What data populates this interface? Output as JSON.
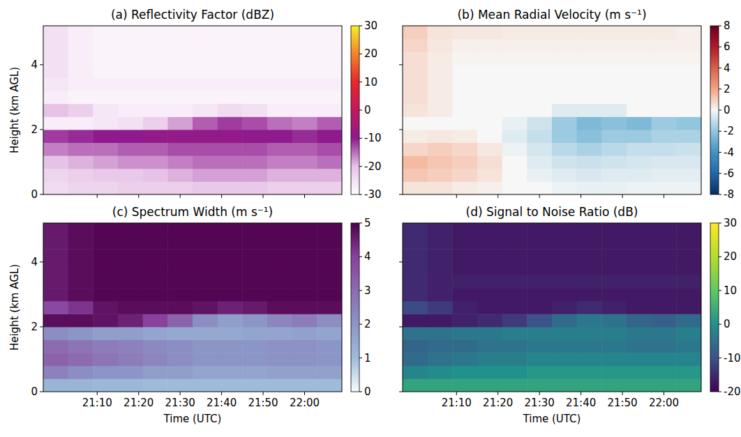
{
  "chart_data": [
    {
      "type": "heatmap",
      "title": "(a) Reflectivity Factor (dBZ)",
      "ylabel": "Height (km AGL)",
      "tick_labels": "y",
      "xlim": [
        1257,
        1329
      ],
      "ylim": [
        0,
        5.2
      ],
      "xticks": [
        {
          "value": 1270,
          "label": "21:10"
        },
        {
          "value": 1280,
          "label": "21:20"
        },
        {
          "value": 1290,
          "label": "21:30"
        },
        {
          "value": 1300,
          "label": "21:40"
        },
        {
          "value": 1310,
          "label": "21:50"
        },
        {
          "value": 1320,
          "label": "22:00"
        }
      ],
      "yticks": [
        0,
        2,
        4
      ],
      "x_bins": [
        1257,
        1263,
        1269,
        1275,
        1281,
        1287,
        1293,
        1299,
        1305,
        1311,
        1317,
        1323,
        1329
      ],
      "y_bins": [
        0,
        0.4,
        0.8,
        1.2,
        1.6,
        2.0,
        2.4,
        2.8,
        3.2,
        3.6,
        4.0,
        4.4,
        4.8,
        5.2
      ],
      "cells": [
        [
          -24,
          -23,
          -23,
          -22,
          -22,
          -22,
          -21,
          -21,
          -21,
          -22,
          -22,
          -22
        ],
        [
          -23,
          -22,
          -21,
          -21,
          -20,
          -19,
          -18,
          -18,
          -18,
          -19,
          -19,
          -19
        ],
        [
          -20,
          -19,
          -18,
          -17,
          -17,
          -16,
          -15,
          -15,
          -15,
          -16,
          -16,
          -15
        ],
        [
          -16,
          -15,
          -15,
          -14,
          -14,
          -13,
          -13,
          -13,
          -13,
          -14,
          -14,
          -13
        ],
        [
          -12,
          -11,
          -10,
          -10,
          -9,
          -9,
          -9,
          -9,
          -10,
          -10,
          -11,
          -10
        ],
        [
          -27,
          -27,
          -26,
          -25,
          -22,
          -18,
          -14,
          -12,
          -13,
          -15,
          -16,
          -14
        ],
        [
          -20,
          -22,
          -26,
          -27,
          -27,
          -27,
          -26,
          -24,
          -25,
          -27,
          -27,
          -27
        ],
        [
          -27,
          -28,
          -28,
          -28,
          -28,
          -28,
          -28,
          -28,
          -28,
          -28,
          -28,
          -28
        ],
        [
          -26,
          -27,
          -27,
          -27,
          -27,
          -27,
          -27,
          -27,
          -27,
          -27,
          -27,
          -27
        ],
        [
          -25,
          -27,
          -28,
          -28,
          -28,
          -28,
          -28,
          -28,
          -28,
          -28,
          -28,
          -28
        ],
        [
          -25,
          -27,
          -28,
          -28,
          -28,
          -28,
          -28,
          -28,
          -28,
          -28,
          -28,
          -28
        ],
        [
          -25,
          -27,
          -28,
          -28,
          -28,
          -28,
          -28,
          -28,
          -28,
          -28,
          -28,
          -28
        ],
        [
          -25,
          -27,
          -28,
          -28,
          -28,
          -28,
          -28,
          -28,
          -28,
          -28,
          -28,
          -28
        ]
      ],
      "colorbar_range": [
        -30,
        30
      ],
      "colorbar_ticks": [
        -30,
        -20,
        -10,
        0,
        10,
        20,
        30
      ],
      "colors": [
        "#ffffff",
        "#e6c3e6",
        "#8e1a8e",
        "#c2185b",
        "#e8262a",
        "#f2842a",
        "#f9ee25"
      ]
    },
    {
      "type": "heatmap",
      "title": "(b) Mean Radial Velocity (m s⁻¹)",
      "tick_labels": false,
      "xlim": [
        1257,
        1329
      ],
      "ylim": [
        0,
        5.2
      ],
      "xticks": [
        {
          "value": 1270,
          "label": "21:10"
        },
        {
          "value": 1280,
          "label": "21:20"
        },
        {
          "value": 1290,
          "label": "21:30"
        },
        {
          "value": 1300,
          "label": "21:40"
        },
        {
          "value": 1310,
          "label": "21:50"
        },
        {
          "value": 1320,
          "label": "22:00"
        }
      ],
      "yticks": [
        0,
        2,
        4
      ],
      "x_bins": [
        1257,
        1263,
        1269,
        1275,
        1281,
        1287,
        1293,
        1299,
        1305,
        1311,
        1317,
        1323,
        1329
      ],
      "y_bins": [
        0,
        0.4,
        0.8,
        1.2,
        1.6,
        2.0,
        2.4,
        2.8,
        3.2,
        3.6,
        4.0,
        4.4,
        4.8,
        5.2
      ],
      "cells": [
        [
          0.5,
          0.5,
          0.3,
          0.2,
          0,
          0,
          -0.2,
          -0.3,
          -0.3,
          -0.2,
          -0.2,
          -0.2
        ],
        [
          1.2,
          1.0,
          0.8,
          0.5,
          0,
          -0.3,
          -0.5,
          -0.6,
          -0.5,
          -0.5,
          -0.4,
          -0.4
        ],
        [
          1.5,
          1.2,
          1.0,
          0.6,
          0,
          -0.5,
          -0.8,
          -0.9,
          -0.8,
          -0.7,
          -0.6,
          -0.6
        ],
        [
          0.8,
          1.0,
          0.8,
          0.4,
          -0.2,
          -0.7,
          -1.2,
          -1.5,
          -1.2,
          -1.0,
          -1.0,
          -0.9
        ],
        [
          0.3,
          0.4,
          0.3,
          0,
          -0.5,
          -1.0,
          -1.8,
          -2.2,
          -1.8,
          -1.8,
          -1.5,
          -1.5
        ],
        [
          0,
          0,
          0,
          0,
          -0.3,
          -0.8,
          -1.8,
          -2.5,
          -2.2,
          -2.5,
          -1.8,
          -2.0
        ],
        [
          0.5,
          0.3,
          0,
          0,
          0,
          0,
          -0.5,
          -0.5,
          -0.5,
          0,
          0,
          0
        ],
        [
          0.6,
          0.3,
          0,
          0,
          0,
          0,
          0,
          0,
          0,
          0,
          0,
          0
        ],
        [
          0.6,
          0.3,
          0,
          0,
          0,
          0,
          0,
          0,
          0,
          0,
          0,
          0
        ],
        [
          0.6,
          0.3,
          0,
          0,
          0,
          0,
          0,
          0,
          0,
          0,
          0,
          0
        ],
        [
          0.6,
          0.3,
          0.1,
          0.1,
          0.1,
          0.1,
          0.1,
          0.1,
          0.1,
          0.1,
          0.1,
          0.1
        ],
        [
          0.8,
          0.4,
          0.2,
          0.2,
          0.2,
          0.2,
          0.2,
          0.2,
          0.2,
          0.2,
          0.2,
          0.2
        ],
        [
          1.0,
          0.5,
          0.4,
          0.4,
          0.3,
          0.3,
          0.3,
          0.3,
          0.3,
          0.3,
          0.3,
          0.2
        ]
      ],
      "colorbar_range": [
        -8,
        8
      ],
      "colorbar_ticks": [
        -8,
        -6,
        -4,
        -2,
        0,
        2,
        4,
        6,
        8
      ],
      "colors": [
        "#053061",
        "#2166ac",
        "#4393c3",
        "#92c5de",
        "#f7f7f7",
        "#f4a582",
        "#d6604d",
        "#b2182b",
        "#67001f"
      ]
    },
    {
      "type": "heatmap",
      "title": "(c) Spectrum Width (m s⁻¹)",
      "ylabel": "Height (km AGL)",
      "xlabel": "Time (UTC)",
      "tick_labels": true,
      "xlim": [
        1257,
        1329
      ],
      "ylim": [
        0,
        5.2
      ],
      "xticks": [
        {
          "value": 1270,
          "label": "21:10"
        },
        {
          "value": 1280,
          "label": "21:20"
        },
        {
          "value": 1290,
          "label": "21:30"
        },
        {
          "value": 1300,
          "label": "21:40"
        },
        {
          "value": 1310,
          "label": "21:50"
        },
        {
          "value": 1320,
          "label": "22:00"
        }
      ],
      "yticks": [
        0,
        2,
        4
      ],
      "x_bins": [
        1257,
        1263,
        1269,
        1275,
        1281,
        1287,
        1293,
        1299,
        1305,
        1311,
        1317,
        1323,
        1329
      ],
      "y_bins": [
        0,
        0.4,
        0.8,
        1.2,
        1.6,
        2.0,
        2.4,
        2.8,
        3.2,
        3.6,
        4.0,
        4.4,
        4.8,
        5.2
      ],
      "cells": [
        [
          1.2,
          1.2,
          1.1,
          1.1,
          1.0,
          1.0,
          1.0,
          1.0,
          1.0,
          1.0,
          1.0,
          1.0
        ],
        [
          2.5,
          2.2,
          2.0,
          2.0,
          1.8,
          1.8,
          1.6,
          1.6,
          1.6,
          1.7,
          1.7,
          1.7
        ],
        [
          3.2,
          3.0,
          2.8,
          2.6,
          2.4,
          2.2,
          2.0,
          2.0,
          2.0,
          2.1,
          2.1,
          2.0
        ],
        [
          3.0,
          2.8,
          2.6,
          2.5,
          2.3,
          2.2,
          2.0,
          2.0,
          2.0,
          2.1,
          2.1,
          2.0
        ],
        [
          2.2,
          2.0,
          1.8,
          1.8,
          1.6,
          1.5,
          1.5,
          1.5,
          1.6,
          1.6,
          1.7,
          1.6
        ],
        [
          4.8,
          4.8,
          4.7,
          4.5,
          4.0,
          3.2,
          2.2,
          1.8,
          2.0,
          2.4,
          2.6,
          2.2
        ],
        [
          3.8,
          4.2,
          4.7,
          4.8,
          4.8,
          4.8,
          4.7,
          4.5,
          4.6,
          4.8,
          4.8,
          4.8
        ],
        [
          4.6,
          4.8,
          4.9,
          4.9,
          4.9,
          4.9,
          4.9,
          4.9,
          4.9,
          4.9,
          4.9,
          4.9
        ],
        [
          4.6,
          4.8,
          4.9,
          4.9,
          4.9,
          4.9,
          4.9,
          4.9,
          4.9,
          4.9,
          4.9,
          4.9
        ],
        [
          4.6,
          4.8,
          4.9,
          4.9,
          4.9,
          4.9,
          4.9,
          4.9,
          4.9,
          4.9,
          4.9,
          4.9
        ],
        [
          4.6,
          4.8,
          4.9,
          4.9,
          4.9,
          4.9,
          4.9,
          4.9,
          4.9,
          4.9,
          4.9,
          4.9
        ],
        [
          4.6,
          4.8,
          4.9,
          4.9,
          4.9,
          4.9,
          4.9,
          4.9,
          4.9,
          4.9,
          4.9,
          4.9
        ],
        [
          4.6,
          4.8,
          4.9,
          4.9,
          4.9,
          4.9,
          4.9,
          4.9,
          4.9,
          4.9,
          4.9,
          4.9
        ]
      ],
      "colorbar_range": [
        0,
        5
      ],
      "colorbar_ticks": [
        0,
        1,
        2,
        3,
        4,
        5
      ],
      "colors": [
        "#f7fcfd",
        "#9ebcda",
        "#8c96c6",
        "#8c6bb1",
        "#88419d",
        "#4d004b"
      ]
    },
    {
      "type": "heatmap",
      "title": "(d) Signal to Noise Ratio (dB)",
      "xlabel": "Time (UTC)",
      "tick_labels": "x",
      "xlim": [
        1257,
        1329
      ],
      "ylim": [
        0,
        5.2
      ],
      "xticks": [
        {
          "value": 1270,
          "label": "21:10"
        },
        {
          "value": 1280,
          "label": "21:20"
        },
        {
          "value": 1290,
          "label": "21:30"
        },
        {
          "value": 1300,
          "label": "21:40"
        },
        {
          "value": 1310,
          "label": "21:50"
        },
        {
          "value": 1320,
          "label": "22:00"
        }
      ],
      "yticks": [
        0,
        2,
        4
      ],
      "x_bins": [
        1257,
        1263,
        1269,
        1275,
        1281,
        1287,
        1293,
        1299,
        1305,
        1311,
        1317,
        1323,
        1329
      ],
      "y_bins": [
        0,
        0.4,
        0.8,
        1.2,
        1.6,
        2.0,
        2.4,
        2.8,
        3.2,
        3.6,
        4.0,
        4.4,
        4.8,
        5.2
      ],
      "cells": [
        [
          3,
          3,
          3,
          3,
          3,
          3,
          3,
          3,
          3,
          3,
          3,
          3
        ],
        [
          -2,
          -1,
          0,
          0,
          0,
          1,
          1,
          1,
          1,
          1,
          1,
          1
        ],
        [
          -6,
          -5,
          -4,
          -3,
          -3,
          -2,
          -2,
          -2,
          -2,
          -2,
          -2,
          -2
        ],
        [
          -7,
          -6,
          -6,
          -5,
          -5,
          -4,
          -4,
          -4,
          -4,
          -5,
          -5,
          -4
        ],
        [
          -5,
          -5,
          -4,
          -4,
          -3,
          -3,
          -3,
          -3,
          -3,
          -4,
          -4,
          -3
        ],
        [
          -17,
          -17,
          -16,
          -15,
          -13,
          -10,
          -6,
          -4,
          -5,
          -7,
          -8,
          -6
        ],
        [
          -11,
          -13,
          -16,
          -17,
          -17,
          -17,
          -16,
          -15,
          -16,
          -17,
          -17,
          -17
        ],
        [
          -15,
          -16,
          -17,
          -17,
          -17,
          -17,
          -17,
          -17,
          -17,
          -17,
          -17,
          -17
        ],
        [
          -15,
          -16,
          -16,
          -16,
          -16,
          -16,
          -16,
          -16,
          -16,
          -16,
          -16,
          -16
        ],
        [
          -15,
          -16,
          -17,
          -17,
          -17,
          -17,
          -17,
          -17,
          -17,
          -17,
          -17,
          -17
        ],
        [
          -15,
          -16,
          -17,
          -17,
          -17,
          -17,
          -17,
          -17,
          -17,
          -17,
          -17,
          -17
        ],
        [
          -15,
          -16,
          -17,
          -17,
          -17,
          -17,
          -17,
          -17,
          -17,
          -17,
          -17,
          -17
        ],
        [
          -15,
          -16,
          -17,
          -17,
          -17,
          -17,
          -17,
          -17,
          -17,
          -17,
          -17,
          -17
        ]
      ],
      "colorbar_range": [
        -20,
        30
      ],
      "colorbar_ticks": [
        -20,
        -10,
        0,
        10,
        20,
        30
      ],
      "colors": [
        "#440154",
        "#3b528b",
        "#21918c",
        "#5ec962",
        "#b5de2b",
        "#fde725"
      ]
    }
  ]
}
